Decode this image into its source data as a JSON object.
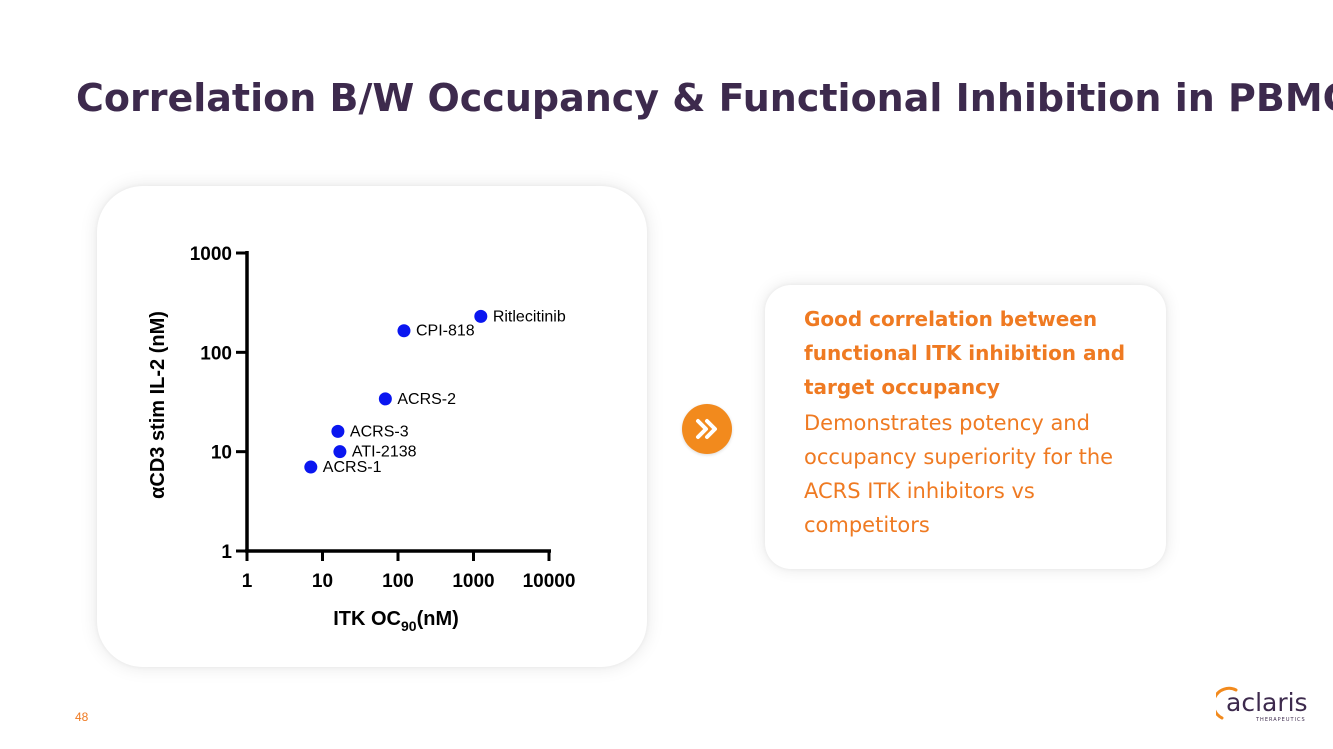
{
  "slide": {
    "title": "Correlation B/W Occupancy & Functional Inhibition in PBMC",
    "page_number": "48"
  },
  "colors": {
    "title": "#3d2a4d",
    "accent_orange": "#ef7a22",
    "badge_orange": "#f28a1d",
    "point_blue": "#0a16f0",
    "axis": "#000000"
  },
  "chart_data": {
    "type": "scatter",
    "xscale": "log",
    "yscale": "log",
    "xlim": [
      1,
      10000
    ],
    "ylim": [
      1,
      1000
    ],
    "xticks": [
      1,
      10,
      100,
      1000,
      10000
    ],
    "xtick_labels": [
      "1",
      "10",
      "100",
      "1000",
      "10000"
    ],
    "yticks": [
      1,
      10,
      100,
      1000
    ],
    "ytick_labels": [
      "1",
      "10",
      "100",
      "1000"
    ],
    "xlabel_main": "ITK OC",
    "xlabel_sub": "90",
    "xlabel_tail": "(nM)",
    "ylabel": "αCD3 stim IL-2 (nM)",
    "grid": false,
    "points": [
      {
        "label": "Ritlecitinib",
        "x": 1250,
        "y": 230
      },
      {
        "label": "CPI-818",
        "x": 120,
        "y": 165
      },
      {
        "label": "ACRS-2",
        "x": 68,
        "y": 34
      },
      {
        "label": "ACRS-3",
        "x": 16,
        "y": 16
      },
      {
        "label": "ATI-2138",
        "x": 17,
        "y": 10
      },
      {
        "label": "ACRS-1",
        "x": 7,
        "y": 7
      }
    ]
  },
  "info_card": {
    "heading": "Good correlation between functional ITK inhibition and target occupancy",
    "body": "Demonstrates potency and occupancy superiority for the ACRS ITK inhibitors vs competitors"
  },
  "icons": {
    "arrow_badge": "double-chevron-right-icon",
    "logo": "aclaris-logo"
  },
  "logo": {
    "wordmark": "aclaris",
    "subtitle": "THERAPEUTICS"
  }
}
